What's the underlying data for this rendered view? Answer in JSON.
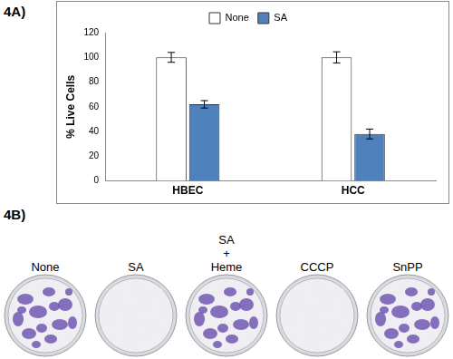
{
  "chart_data": {
    "type": "bar",
    "annotations": [
      "4A)"
    ],
    "y_label": "% Live Cells",
    "categories": [
      "HBEC",
      "HCC"
    ],
    "series": [
      {
        "name": "None",
        "color": "#ffffff",
        "values": [
          100,
          100
        ],
        "errors": [
          4,
          4.5
        ]
      },
      {
        "name": "SA",
        "color": "#4f81bd",
        "values": [
          62,
          38
        ],
        "errors": [
          3,
          4
        ]
      }
    ],
    "ylim": [
      0,
      120
    ],
    "yticks": [
      0,
      20,
      40,
      60,
      80,
      100,
      120
    ],
    "grid": false,
    "legend": "top"
  },
  "image_panel": {
    "label": "4B)",
    "plates": [
      {
        "lines": [
          "None"
        ],
        "color": "#6a4fae"
      },
      {
        "lines": [
          "SA"
        ],
        "color": "#eeeef3"
      },
      {
        "lines": [
          "SA",
          "+",
          "Heme"
        ],
        "color": "#6a4fae"
      },
      {
        "lines": [
          "CCCP"
        ],
        "color": "#eeeef3"
      },
      {
        "lines": [
          "SnPP"
        ],
        "color": "#6a4fae"
      }
    ]
  }
}
